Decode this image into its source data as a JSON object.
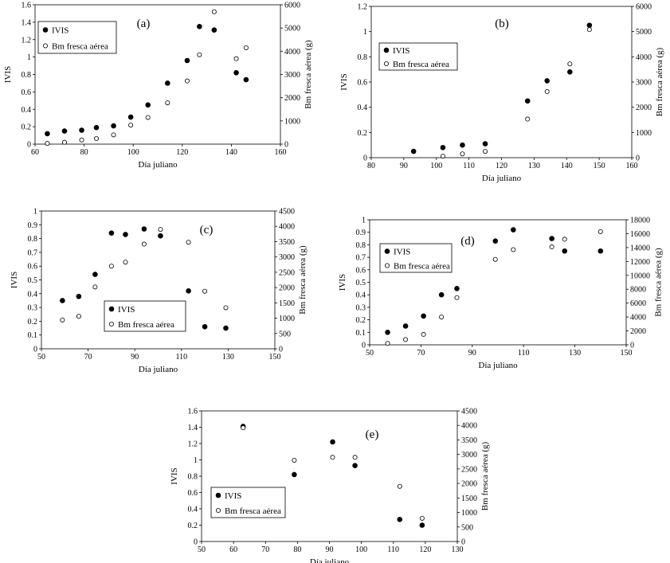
{
  "colors": {
    "axis": "#000000",
    "filled": "#000000",
    "open_fill": "#ffffff"
  },
  "chart_data": [
    {
      "type": "scatter",
      "panel": "(a)",
      "xlabel": "Día juliano",
      "ylabel": "IVIS",
      "y2label": "Bm fresca aérea (g)",
      "xlim": [
        60,
        160
      ],
      "xticks": [
        60,
        80,
        100,
        120,
        140,
        160
      ],
      "ylim": [
        0,
        1.6
      ],
      "yticks": [
        "0",
        "0.2",
        "0.4",
        "0.6",
        "0.8",
        "1",
        "1.2",
        "1.4",
        "1.6"
      ],
      "y2lim": [
        0,
        6000
      ],
      "y2ticks": [
        "0",
        "1000",
        "2000",
        "3000",
        "4000",
        "5000",
        "6000"
      ],
      "legend": {
        "position": "top-left",
        "entries": [
          "IVIS",
          "Bm fresca aérea"
        ]
      },
      "series": [
        {
          "name": "IVIS",
          "axis": "left",
          "marker": "filled",
          "x": [
            65,
            72,
            79,
            85,
            92,
            99,
            106,
            114,
            122,
            127,
            133,
            142,
            146
          ],
          "y": [
            0.12,
            0.15,
            0.16,
            0.19,
            0.21,
            0.31,
            0.45,
            0.7,
            0.96,
            1.35,
            1.31,
            0.82,
            0.74
          ]
        },
        {
          "name": "Bm fresca aérea",
          "axis": "right",
          "marker": "open",
          "x": [
            65,
            72,
            79,
            85,
            92,
            99,
            106,
            114,
            122,
            127,
            133,
            142,
            146
          ],
          "y": [
            30,
            80,
            180,
            240,
            400,
            820,
            1150,
            1780,
            2720,
            3850,
            5700,
            3680,
            4150
          ]
        }
      ]
    },
    {
      "type": "scatter",
      "panel": "(b)",
      "xlabel": "Día juliano",
      "ylabel": "IVIS",
      "y2label": "Bm fresca aérea (g)",
      "xlim": [
        80,
        160
      ],
      "xticks": [
        80,
        90,
        100,
        110,
        120,
        130,
        140,
        150,
        160
      ],
      "ylim": [
        0,
        1.2
      ],
      "yticks": [
        "0",
        "0.2",
        "0.4",
        "0.6",
        "0.8",
        "1",
        "1.2"
      ],
      "y2lim": [
        0,
        6000
      ],
      "y2ticks": [
        "0",
        "1000",
        "2000",
        "3000",
        "4000",
        "5000",
        "6000"
      ],
      "legend": {
        "position": "top-left",
        "entries": [
          "IVIS",
          "Bm fresca aérea"
        ]
      },
      "series": [
        {
          "name": "IVIS",
          "axis": "left",
          "marker": "filled",
          "x": [
            93,
            102,
            108,
            115,
            128,
            134,
            141,
            147
          ],
          "y": [
            0.05,
            0.08,
            0.1,
            0.11,
            0.45,
            0.61,
            0.68,
            1.05
          ]
        },
        {
          "name": "Bm fresca aérea",
          "axis": "right",
          "marker": "open",
          "x": [
            102,
            108,
            115,
            128,
            134,
            141,
            147
          ],
          "y": [
            60,
            150,
            250,
            1530,
            2620,
            3720,
            5080
          ]
        }
      ]
    },
    {
      "type": "scatter",
      "panel": "(c)",
      "xlabel": "Día juliano",
      "ylabel": "IVIS",
      "y2label": "Bm fresca aérea (g)",
      "xlim": [
        50,
        150
      ],
      "xticks": [
        50,
        70,
        90,
        110,
        130,
        150
      ],
      "ylim": [
        0,
        1
      ],
      "yticks": [
        "0",
        "0.1",
        "0.2",
        "0.3",
        "0.4",
        "0.5",
        "0.6",
        "0.7",
        "0.8",
        "0.9",
        "1"
      ],
      "y2lim": [
        0,
        4500
      ],
      "y2ticks": [
        "0",
        "500",
        "1000",
        "1500",
        "2000",
        "2500",
        "3000",
        "3500",
        "4000",
        "4500"
      ],
      "legend": {
        "position": "bottom-center",
        "entries": [
          "IVIS",
          "Bm fresca aérea"
        ]
      },
      "series": [
        {
          "name": "IVIS",
          "axis": "left",
          "marker": "filled",
          "x": [
            59,
            66,
            73,
            80,
            86,
            94,
            101,
            113,
            120,
            129
          ],
          "y": [
            0.35,
            0.38,
            0.54,
            0.84,
            0.83,
            0.87,
            0.82,
            0.42,
            0.16,
            0.15
          ]
        },
        {
          "name": "Bm fresca aérea",
          "axis": "right",
          "marker": "open",
          "x": [
            59,
            66,
            73,
            80,
            86,
            94,
            101,
            113,
            120,
            129
          ],
          "y": [
            940,
            1060,
            2020,
            2700,
            2830,
            3420,
            3900,
            3480,
            1880,
            1340
          ]
        }
      ]
    },
    {
      "type": "scatter",
      "panel": "(d)",
      "xlabel": "Día juliano",
      "ylabel": "IVIS",
      "y2label": "Bm fresca aérea (g)",
      "xlim": [
        50,
        150
      ],
      "xticks": [
        50,
        70,
        90,
        110,
        130,
        150
      ],
      "ylim": [
        0,
        1
      ],
      "yticks": [
        "0",
        "0.1",
        "0.2",
        "0.3",
        "0.4",
        "0.5",
        "0.6",
        "0.7",
        "0.8",
        "0.9",
        "1"
      ],
      "y2lim": [
        0,
        18000
      ],
      "y2ticks": [
        "0",
        "2000",
        "4000",
        "6000",
        "8000",
        "10000",
        "12000",
        "14000",
        "16000",
        "18000"
      ],
      "legend": {
        "position": "top-left",
        "entries": [
          "IVIS",
          "Bm fresca aérea"
        ]
      },
      "series": [
        {
          "name": "IVIS",
          "axis": "left",
          "marker": "filled",
          "x": [
            57,
            64,
            71,
            78,
            84,
            99,
            106,
            121,
            126,
            140
          ],
          "y": [
            0.1,
            0.15,
            0.23,
            0.4,
            0.45,
            0.83,
            0.92,
            0.85,
            0.75,
            0.75
          ]
        },
        {
          "name": "Bm fresca aérea",
          "axis": "right",
          "marker": "open",
          "x": [
            57,
            64,
            71,
            78,
            84,
            99,
            106,
            121,
            126,
            140
          ],
          "y": [
            200,
            760,
            1500,
            4000,
            6800,
            12300,
            13700,
            14100,
            15200,
            16300
          ]
        }
      ]
    },
    {
      "type": "scatter",
      "panel": "(e)",
      "xlabel": "Día juliano",
      "ylabel": "IVIS",
      "y2label": "Bm fresca aérea (g)",
      "xlim": [
        50,
        130
      ],
      "xticks": [
        50,
        60,
        70,
        80,
        90,
        100,
        110,
        120,
        130
      ],
      "ylim": [
        0,
        1.6
      ],
      "yticks": [
        "0",
        "0.2",
        "0.4",
        "0.6",
        "0.8",
        "1",
        "1.2",
        "1.4",
        "1.6"
      ],
      "y2lim": [
        0,
        4500
      ],
      "y2ticks": [
        "0",
        "500",
        "1000",
        "1500",
        "2000",
        "2500",
        "3000",
        "3500",
        "4000",
        "4500"
      ],
      "legend": {
        "position": "bottom-left",
        "entries": [
          "IVIS",
          "Bm fresca aérea"
        ]
      },
      "series": [
        {
          "name": "IVIS",
          "axis": "left",
          "marker": "filled",
          "x": [
            63,
            79,
            91,
            98,
            112,
            119
          ],
          "y": [
            1.41,
            0.82,
            1.22,
            0.93,
            0.27,
            0.2
          ]
        },
        {
          "name": "Bm fresca aérea",
          "axis": "right",
          "marker": "open",
          "x": [
            63,
            79,
            91,
            98,
            112,
            119
          ],
          "y": [
            3920,
            2800,
            2900,
            2900,
            1900,
            800
          ]
        }
      ]
    }
  ]
}
